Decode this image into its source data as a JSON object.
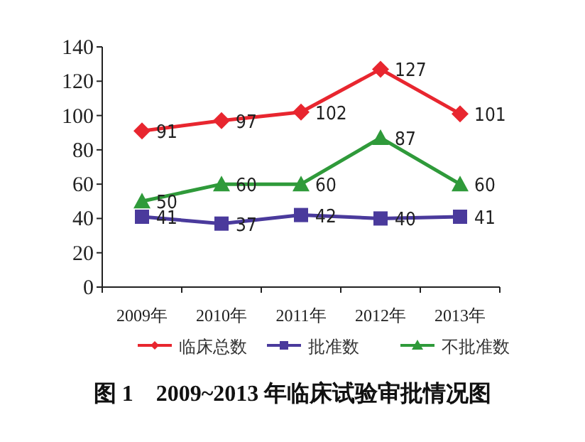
{
  "chart_data": {
    "type": "line",
    "title": "图 1　2009~2013 年临床试验审批情况图",
    "categories": [
      "2009年",
      "2010年",
      "2011年",
      "2012年",
      "2013年"
    ],
    "series": [
      {
        "name": "临床总数",
        "color": "#e8262f",
        "marker": "diamond",
        "values": [
          91,
          97,
          102,
          127,
          101
        ]
      },
      {
        "name": "批准数",
        "color": "#4a3a9c",
        "marker": "square",
        "values": [
          41,
          37,
          42,
          40,
          41
        ]
      },
      {
        "name": "不批准数",
        "color": "#2f9a3a",
        "marker": "triangle",
        "values": [
          50,
          60,
          60,
          87,
          60
        ]
      }
    ],
    "ylim": [
      0,
      140
    ],
    "yticks": [
      0,
      20,
      40,
      60,
      80,
      100,
      120,
      140
    ],
    "data_labels": true,
    "legend": "bottom",
    "grid": false
  }
}
